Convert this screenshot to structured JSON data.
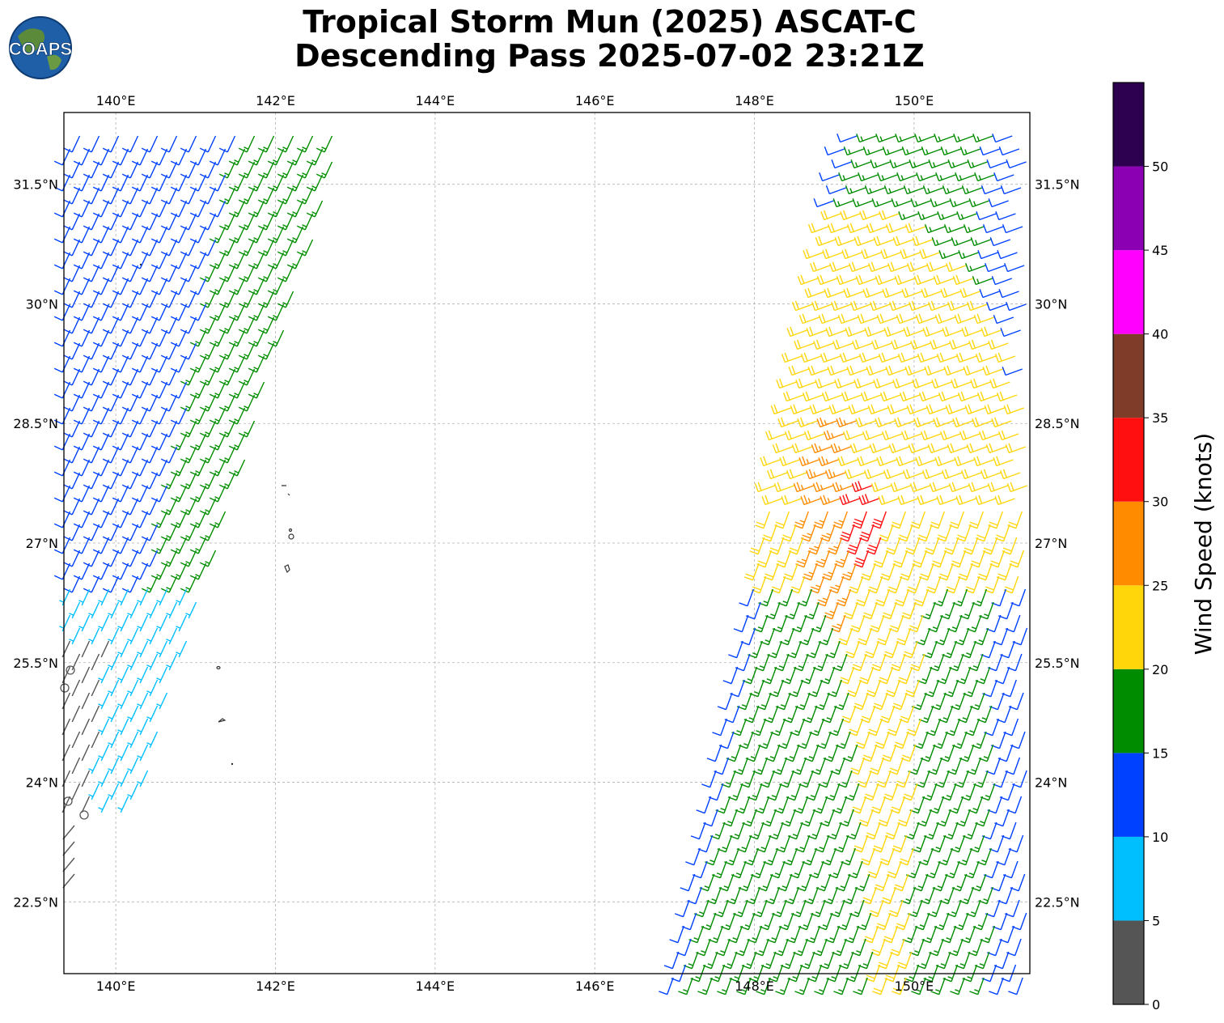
{
  "title_line1": "Tropical Storm Mun (2025) ASCAT-C",
  "title_line2": "Descending Pass 2025-07-02 23:21Z",
  "logo_text": "COAPS",
  "map": {
    "lon_labels": [
      "140°E",
      "142°E",
      "144°E",
      "146°E",
      "148°E",
      "150°E"
    ],
    "lon_values": [
      140,
      142,
      144,
      146,
      148,
      150
    ],
    "lat_labels": [
      "31.5°N",
      "30°N",
      "28.5°N",
      "27°N",
      "25.5°N",
      "24°N",
      "22.5°N"
    ],
    "lat_values": [
      31.5,
      30,
      28.5,
      27,
      25.5,
      24,
      22.5
    ],
    "extent_lon": [
      139.35,
      151.45
    ],
    "extent_lat": [
      21.6,
      32.4
    ],
    "gridlines": true
  },
  "colorbar": {
    "label": "Wind Speed (knots)",
    "tick_labels": [
      "0",
      "5",
      "10",
      "15",
      "20",
      "25",
      "30",
      "35",
      "40",
      "45",
      "50"
    ],
    "bins": [
      {
        "min": 0,
        "max": 5,
        "color": "#555555"
      },
      {
        "min": 5,
        "max": 10,
        "color": "#00bfff"
      },
      {
        "min": 10,
        "max": 15,
        "color": "#0040ff"
      },
      {
        "min": 15,
        "max": 20,
        "color": "#008c00"
      },
      {
        "min": 20,
        "max": 25,
        "color": "#ffd60a"
      },
      {
        "min": 25,
        "max": 30,
        "color": "#ff8c00"
      },
      {
        "min": 30,
        "max": 35,
        "color": "#ff0f0f"
      },
      {
        "min": 35,
        "max": 40,
        "color": "#7f3c28"
      },
      {
        "min": 40,
        "max": 45,
        "color": "#ff00ff"
      },
      {
        "min": 45,
        "max": 50,
        "color": "#8c00b4"
      },
      {
        "min": 50,
        "max": 55,
        "color": "#2d0050"
      }
    ]
  }
}
